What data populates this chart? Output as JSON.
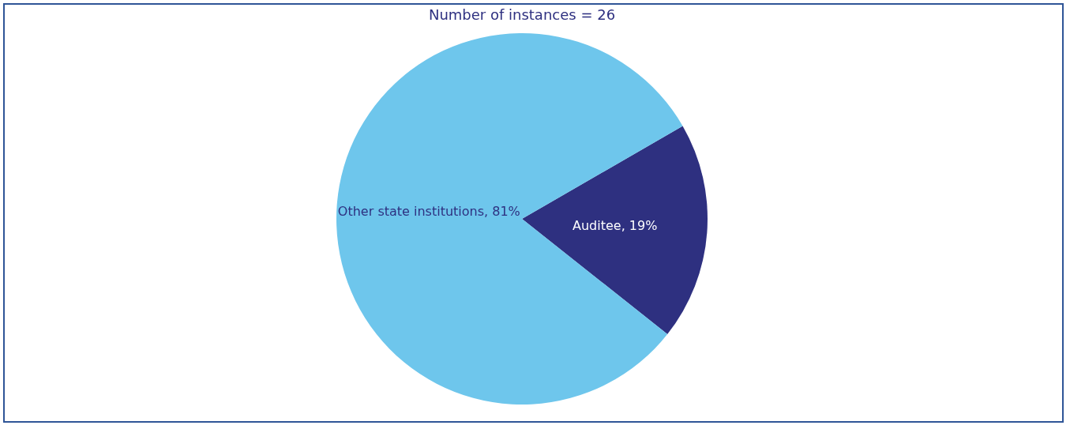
{
  "chart_data": {
    "type": "pie",
    "title": "Number of instances = 26",
    "categories": [
      "Auditee",
      "Other state institutions"
    ],
    "values": [
      19,
      81
    ],
    "colors": [
      "#2e3080",
      "#6ec6ec"
    ],
    "value_labels": [
      "19%",
      "81%"
    ]
  }
}
